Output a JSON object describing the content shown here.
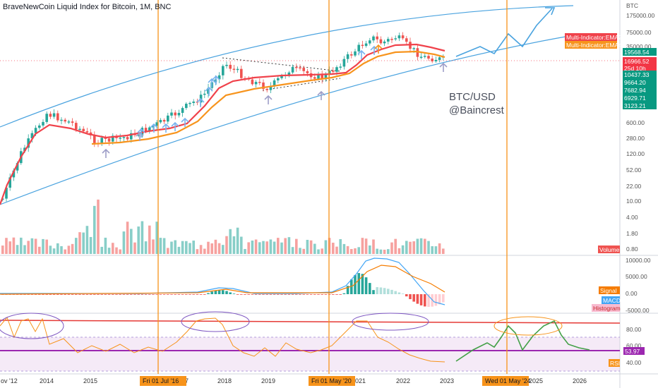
{
  "header": {
    "title": "BraveNewCoin Liquid Index for Bitcoin, 1M, BNC"
  },
  "watermark": {
    "line1": "BTC/USD",
    "line2": "@Baincrest"
  },
  "price_axis": {
    "currency": "BTC",
    "ticks": [
      "175000.00",
      "75000.00",
      "35000.00",
      "5000.00",
      "2500.00",
      "1350.00",
      "600.00",
      "280.00",
      "120.00",
      "52.00",
      "22.00",
      "10.00",
      "4.00",
      "1.80",
      "0.80"
    ]
  },
  "price_tags": [
    {
      "text": "19568.54",
      "color": "#089981"
    },
    {
      "text": "16966.52",
      "color": "#f23645"
    },
    {
      "text": "25d 10h",
      "color": "#f23645"
    },
    {
      "text": "10437.33",
      "color": "#089981"
    },
    {
      "text": "9664.20",
      "color": "#089981"
    },
    {
      "text": "7682.94",
      "color": "#089981"
    },
    {
      "text": "6929.71",
      "color": "#089981"
    },
    {
      "text": "3123.21",
      "color": "#089981"
    }
  ],
  "labels": {
    "ema_fast": "Multi-Indicator:EMA2",
    "ema_slow": "Multi-Indicator:EMA4",
    "volume": "Volume",
    "signal": "Signal",
    "macd": "MACD",
    "histogram": "Histogram",
    "rsi": "RSI",
    "rsi_value": "53.97"
  },
  "macd_axis": {
    "ticks": [
      "10000.00",
      "5000.00",
      "0.00",
      "-5000.00"
    ]
  },
  "rsi_axis": {
    "ticks": [
      "80.00",
      "60.00",
      "40.00"
    ]
  },
  "time_axis": {
    "labels": [
      "2014",
      "2015",
      "2017",
      "2018",
      "2019",
      "2021",
      "2022",
      "2023",
      "2025",
      "2026"
    ],
    "edge_label": "ov '12",
    "highlights": [
      "Fri 01 Jul '16",
      "Fri 01 May '20",
      "Wed 01 May '24"
    ]
  },
  "colors": {
    "up": "#26a69a",
    "down": "#ef5350",
    "ema_fast": "#f0424b",
    "ema_slow": "#f7941d",
    "channel": "#4aa3df",
    "event_line": "#f7931a",
    "rsi_line": "#f7931a",
    "rsi_level": "#9c27b0"
  },
  "chart_data": {
    "type": "candlestick",
    "symbol": "BTC/USD",
    "exchange": "BNC",
    "interval": "1M",
    "y_scale": "log",
    "last_price": 16966.52,
    "events": [
      "Fri 01 Jul '16",
      "Fri 01 May '20",
      "Wed 01 May '24"
    ],
    "price_path": [
      {
        "x": "2012-11",
        "close": 11
      },
      {
        "x": "2013-04",
        "close": 120
      },
      {
        "x": "2013-11",
        "close": 1000
      },
      {
        "x": "2014-06",
        "close": 600
      },
      {
        "x": "2015-01",
        "close": 220
      },
      {
        "x": "2015-10",
        "close": 300
      },
      {
        "x": "2016-07",
        "close": 650
      },
      {
        "x": "2017-06",
        "close": 2500
      },
      {
        "x": "2017-12",
        "close": 14000
      },
      {
        "x": "2018-06",
        "close": 6300
      },
      {
        "x": "2018-12",
        "close": 3700
      },
      {
        "x": "2019-06",
        "close": 10800
      },
      {
        "x": "2020-03",
        "close": 6400
      },
      {
        "x": "2020-12",
        "close": 29000
      },
      {
        "x": "2021-04",
        "close": 57000
      },
      {
        "x": "2021-07",
        "close": 41000
      },
      {
        "x": "2021-11",
        "close": 57000
      },
      {
        "x": "2022-06",
        "close": 19800
      },
      {
        "x": "2022-12",
        "close": 16966.52
      }
    ],
    "projection": [
      {
        "x": "2023-04",
        "close": 30000
      },
      {
        "x": "2023-10",
        "close": 45000
      },
      {
        "x": "2024-04",
        "close": 35000
      },
      {
        "x": "2024-09",
        "close": 100000
      },
      {
        "x": "2025-02",
        "close": 55000
      },
      {
        "x": "2025-09",
        "close": 200000
      }
    ],
    "macd": {
      "series": [
        "MACD",
        "Signal",
        "Histogram"
      ],
      "peak_year": "2021",
      "peak_value": 9500
    },
    "rsi": {
      "last": 53.97,
      "ylim": [
        30,
        95
      ]
    }
  }
}
